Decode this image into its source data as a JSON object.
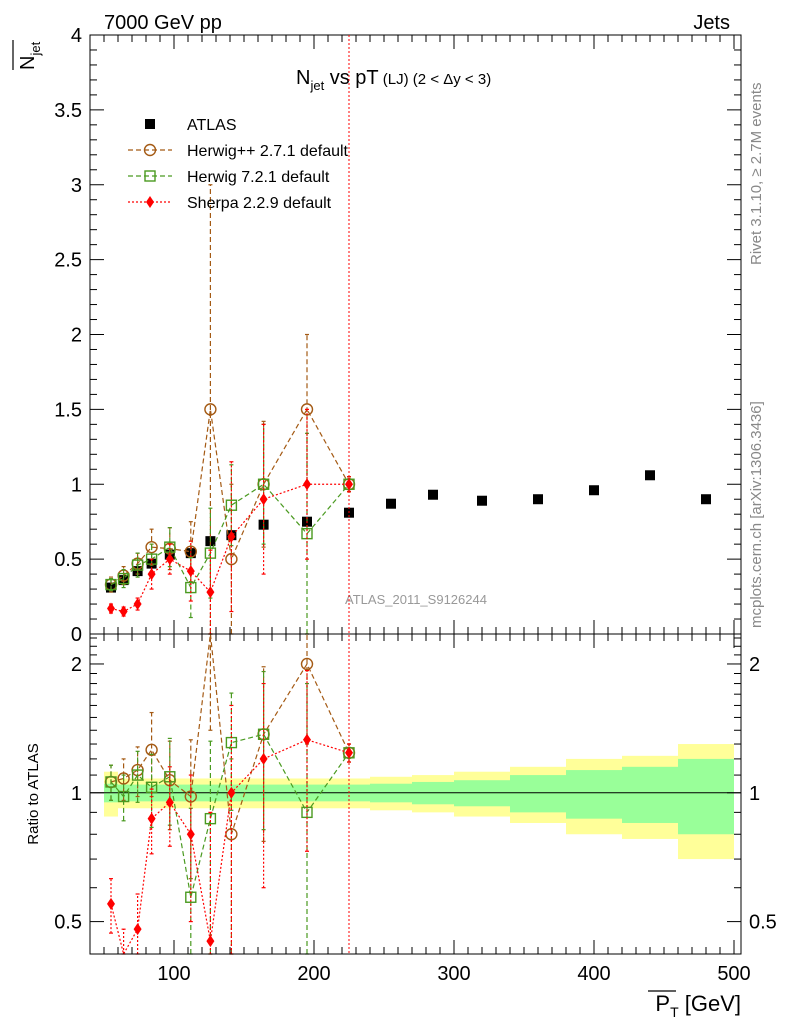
{
  "header": {
    "left": "7000 GeV pp",
    "right": "Jets",
    "side_top": "Rivet 3.1.10, ≥ 2.7M events",
    "side_bottom": "mcplots.cern.ch [arXiv:1306.3436]"
  },
  "chart_data": [
    {
      "type": "scatter",
      "panel": "main",
      "title_main": "N",
      "title_sub": "jet",
      "title_vs": " vs pT",
      "title_tail": " (LJ) (2 < Δy < 3)",
      "ylabel_main": "N",
      "ylabel_sub": "jet",
      "watermark": "ATLAS_2011_S9126244",
      "xlim": [
        40,
        505
      ],
      "ylim": [
        0,
        4
      ],
      "yticks": [
        0,
        0.5,
        1,
        1.5,
        2,
        2.5,
        3,
        3.5,
        4
      ],
      "ytick_labels": [
        "0",
        "0.5",
        "1",
        "1.5",
        "2",
        "2.5",
        "3",
        "3.5",
        "4"
      ],
      "cutoff_x": 225,
      "series": [
        {
          "name": "ATLAS",
          "color": "#000000",
          "marker": "square",
          "x": [
            55,
            64,
            74,
            84,
            97,
            112,
            126,
            141,
            164,
            195,
            225,
            255,
            285,
            320,
            360,
            400,
            440,
            480
          ],
          "y": [
            0.31,
            0.36,
            0.42,
            0.47,
            0.53,
            0.54,
            0.62,
            0.66,
            0.73,
            0.75,
            0.81,
            0.87,
            0.93,
            0.89,
            0.9,
            0.96,
            1.06,
            0.9
          ]
        },
        {
          "name": "Herwig++ 2.7.1 default",
          "color": "#a45a14",
          "marker": "circle-open",
          "line": "dashed",
          "x": [
            55,
            64,
            74,
            84,
            97,
            112,
            126,
            141,
            164,
            195,
            225
          ],
          "y": [
            0.33,
            0.39,
            0.47,
            0.58,
            0.57,
            0.55,
            1.5,
            0.5,
            1.0,
            1.5,
            1.0
          ],
          "err": [
            0.05,
            0.06,
            0.07,
            0.12,
            0.14,
            0.2,
            1.5,
            0.5,
            0.42,
            0.5,
            0.05
          ]
        },
        {
          "name": "Herwig 7.2.1 default",
          "color": "#4a9a20",
          "marker": "square-open",
          "line": "dashed",
          "x": [
            55,
            64,
            74,
            84,
            97,
            112,
            126,
            141,
            164,
            195,
            225
          ],
          "y": [
            0.33,
            0.37,
            0.46,
            0.5,
            0.58,
            0.31,
            0.54,
            0.86,
            1.0,
            0.67,
            1.0
          ],
          "err": [
            0.04,
            0.06,
            0.08,
            0.1,
            0.13,
            0.2,
            0.3,
            0.27,
            0.4,
            0.67,
            0.05
          ]
        },
        {
          "name": "Sherpa 2.2.9 default",
          "color": "#ff0000",
          "marker": "diamond",
          "line": "dotted",
          "x": [
            55,
            64,
            74,
            84,
            97,
            112,
            126,
            141,
            164,
            195,
            225
          ],
          "y": [
            0.17,
            0.15,
            0.2,
            0.4,
            0.5,
            0.42,
            0.28,
            0.65,
            0.9,
            1.0,
            1.0
          ],
          "err": [
            0.03,
            0.03,
            0.04,
            0.1,
            0.1,
            0.2,
            0.28,
            0.5,
            0.5,
            0.5,
            0.05
          ]
        }
      ]
    },
    {
      "type": "scatter",
      "panel": "ratio",
      "ylabel": "Ratio to ATLAS",
      "xlabel_main": "P",
      "xlabel_sub": "T",
      "xlabel_unit": " [GeV]",
      "xlim": [
        40,
        505
      ],
      "ylim": [
        0.42,
        2.35
      ],
      "yscale": "log",
      "xticks": [
        100,
        200,
        300,
        400,
        500
      ],
      "xtick_labels": [
        "100",
        "200",
        "300",
        "400",
        "500"
      ],
      "yticks": [
        0.5,
        1,
        2
      ],
      "ytick_labels": [
        "0.5",
        "1",
        "2"
      ],
      "bands": {
        "edges": [
          50,
          60,
          70,
          80,
          90,
          105,
          120,
          135,
          150,
          180,
          210,
          240,
          270,
          300,
          340,
          380,
          420,
          460,
          500
        ],
        "green_halfwidth": [
          0.05,
          0.045,
          0.045,
          0.045,
          0.045,
          0.045,
          0.045,
          0.045,
          0.045,
          0.045,
          0.045,
          0.05,
          0.06,
          0.07,
          0.1,
          0.13,
          0.15,
          0.2
        ],
        "yellow_halfwidth": [
          0.12,
          0.08,
          0.08,
          0.08,
          0.08,
          0.08,
          0.08,
          0.08,
          0.08,
          0.08,
          0.08,
          0.09,
          0.1,
          0.12,
          0.15,
          0.2,
          0.22,
          0.3
        ],
        "green_color": "#99ff99",
        "yellow_color": "#ffff99"
      },
      "series": [
        {
          "name": "Herwig++ 2.7.1 default",
          "color": "#a45a14",
          "marker": "circle-open",
          "line": "dashed",
          "x": [
            55,
            64,
            74,
            84,
            97,
            112,
            126,
            141,
            164,
            195,
            225
          ],
          "y": [
            1.06,
            1.08,
            1.13,
            1.26,
            1.07,
            0.98,
            2.4,
            0.8,
            1.37,
            2.0,
            1.24
          ],
          "err": [
            0.1,
            0.12,
            0.15,
            0.28,
            0.25,
            0.35,
            1.0,
            0.4,
            0.6,
            0.7,
            0.06
          ]
        },
        {
          "name": "Herwig 7.2.1 default",
          "color": "#4a9a20",
          "marker": "square-open",
          "line": "dashed",
          "x": [
            55,
            64,
            74,
            84,
            97,
            112,
            126,
            141,
            164,
            195,
            225
          ],
          "y": [
            1.06,
            0.98,
            1.1,
            1.03,
            1.09,
            0.57,
            0.87,
            1.31,
            1.37,
            0.9,
            1.24
          ],
          "err": [
            0.1,
            0.12,
            0.15,
            0.2,
            0.25,
            0.35,
            0.45,
            0.4,
            0.55,
            0.9,
            0.06
          ]
        },
        {
          "name": "Sherpa 2.2.9 default",
          "color": "#ff0000",
          "marker": "diamond",
          "line": "dotted",
          "x": [
            55,
            64,
            74,
            84,
            97,
            112,
            126,
            141,
            164,
            195,
            225
          ],
          "y": [
            0.55,
            0.4,
            0.48,
            0.87,
            0.95,
            0.8,
            0.45,
            1.0,
            1.2,
            1.33,
            1.24
          ],
          "err": [
            0.08,
            0.08,
            0.1,
            0.15,
            0.2,
            0.3,
            0.45,
            0.6,
            0.6,
            0.6,
            0.06
          ]
        }
      ]
    }
  ]
}
